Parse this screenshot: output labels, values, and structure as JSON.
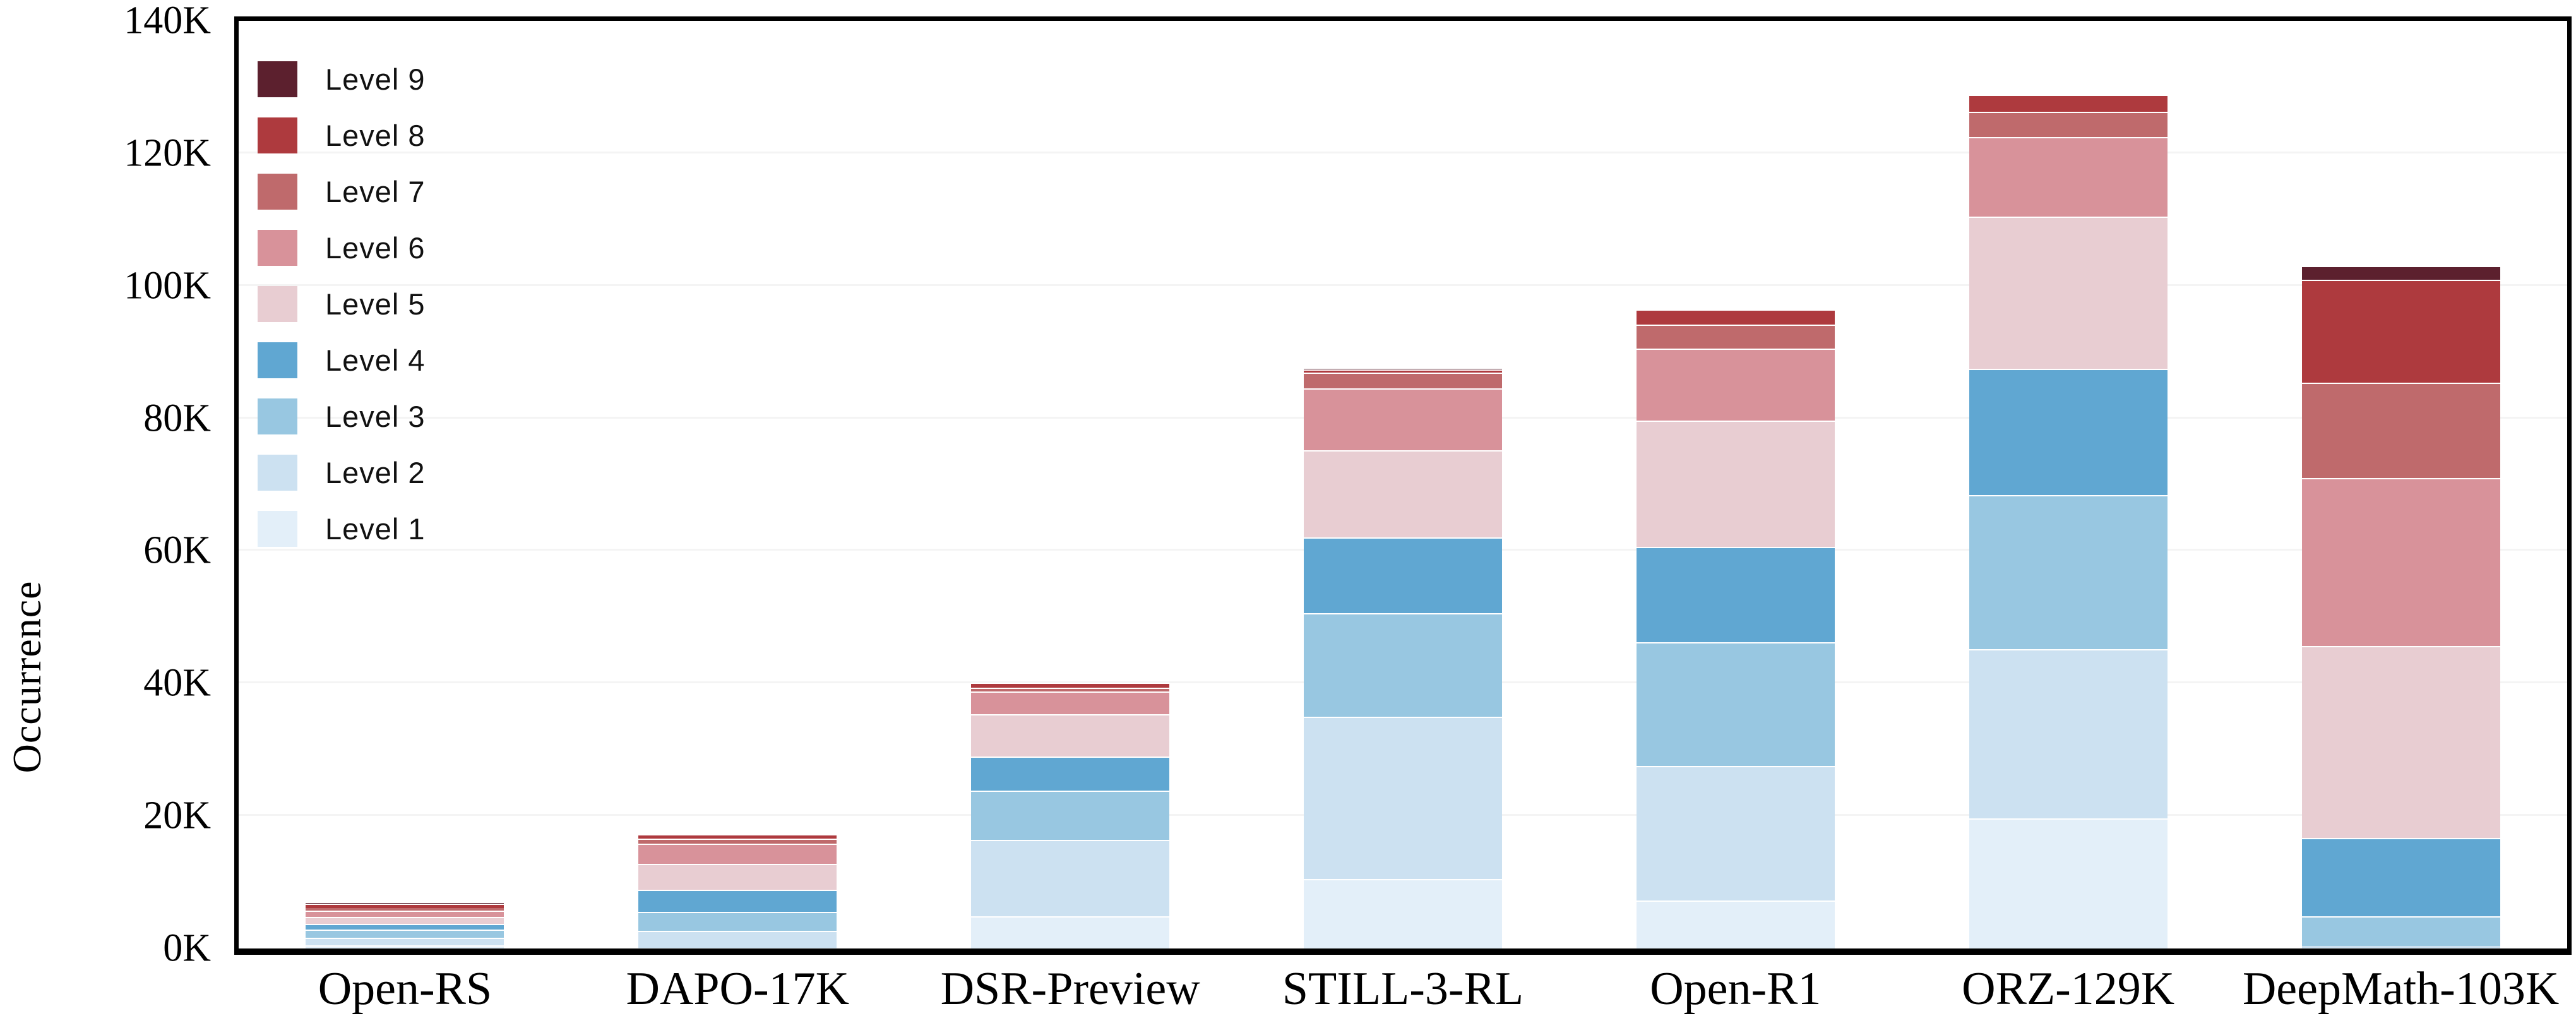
{
  "chart_data": {
    "type": "bar",
    "stacked": true,
    "title": "",
    "xlabel": "",
    "ylabel": "Occurrence",
    "unit": "K",
    "ylim": [
      0,
      140
    ],
    "grid": "horizontal light gray lines every 20K",
    "legend_position": "top-left inside plot, listed Level 9 down to Level 1",
    "y_ticks": [
      "0K",
      "20K",
      "40K",
      "60K",
      "80K",
      "100K",
      "120K",
      "140K"
    ],
    "categories": [
      "Open-RS",
      "DAPO-17K",
      "DSR-Preview",
      "STILL-3-RL",
      "Open-R1",
      "ORZ-129K",
      "DeepMath-103K"
    ],
    "totals_k": [
      7.0,
      17.3,
      40.1,
      87.5,
      96.5,
      128.9,
      103.0
    ],
    "series": [
      {
        "name": "Level 1",
        "color": "#E3EFF9",
        "values": [
          0.5,
          0.1,
          4.9,
          10.5,
          7.2,
          19.6,
          0.1
        ]
      },
      {
        "name": "Level 2",
        "color": "#CCE1F1",
        "values": [
          1.15,
          2.6,
          11.5,
          24.5,
          20.3,
          25.6,
          0.3
        ]
      },
      {
        "name": "Level 3",
        "color": "#98C7E1",
        "values": [
          1.2,
          2.8,
          7.4,
          15.6,
          18.7,
          23.2,
          4.5
        ]
      },
      {
        "name": "Level 4",
        "color": "#60A7D2",
        "values": [
          0.85,
          3.4,
          5.2,
          11.4,
          14.4,
          19.1,
          11.8
        ]
      },
      {
        "name": "Level 5",
        "color": "#E8CDD2",
        "values": [
          1.05,
          3.9,
          6.4,
          13.2,
          19.1,
          23.0,
          29.0
        ]
      },
      {
        "name": "Level 6",
        "color": "#D8929A",
        "values": [
          1.0,
          3.0,
          3.4,
          9.3,
          10.8,
          12.0,
          25.3
        ]
      },
      {
        "name": "Level 7",
        "color": "#BF6A6C",
        "values": [
          0.35,
          0.8,
          0.6,
          2.4,
          3.7,
          3.8,
          14.4
        ]
      },
      {
        "name": "Level 8",
        "color": "#AE3A3E",
        "values": [
          0.7,
          0.7,
          0.7,
          0.5,
          2.3,
          2.6,
          15.5
        ]
      },
      {
        "name": "Level 9",
        "color": "#5C202E",
        "values": [
          0.1,
          0.0,
          0.0,
          0.1,
          0.0,
          0.0,
          2.1
        ]
      }
    ],
    "colors": {
      "frame": "#000000",
      "gridline": "#f4f4f4",
      "background": "#ffffff",
      "segment_separator": "#ffffff"
    }
  }
}
